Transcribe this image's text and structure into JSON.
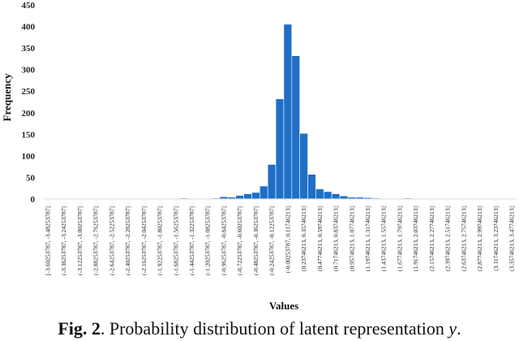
{
  "caption": {
    "label": "Fig. 2",
    "text": ". Probability distribution of latent representation ",
    "variable": "y",
    "end": "."
  },
  "chart_data": {
    "type": "bar",
    "xlabel": "Values",
    "ylabel": "Frequency",
    "ylim": [
      0,
      450
    ],
    "yticks": [
      0,
      50,
      100,
      150,
      200,
      250,
      300,
      350,
      400,
      450
    ],
    "grid": false,
    "bar_color": "#1f6fc6",
    "bins": [
      {
        "value": 0,
        "label": "[-3.60253787, -3.48253787]"
      },
      {
        "value": 0
      },
      {
        "value": 0,
        "label": "(-3.36253787, -3.24253787]"
      },
      {
        "value": 0
      },
      {
        "value": 0,
        "label": "(-3.12253787, -3.00253787]"
      },
      {
        "value": 0
      },
      {
        "value": 0,
        "label": "(-2.88253787, -2.76253787]"
      },
      {
        "value": 0
      },
      {
        "value": 0,
        "label": "(-2.64253787, -2.52253787]"
      },
      {
        "value": 0
      },
      {
        "value": 0,
        "label": "(-2.40253787, -2.28253787]"
      },
      {
        "value": 0
      },
      {
        "value": 0,
        "label": "(-2.16253787, -2.04253787]"
      },
      {
        "value": 1
      },
      {
        "value": 1,
        "label": "(-1.92253787, -1.80253787]"
      },
      {
        "value": 0
      },
      {
        "value": 0,
        "label": "(-1.68253787, -1.56253787]"
      },
      {
        "value": 2
      },
      {
        "value": 1,
        "label": "(-1.44253787, -1.32253787]"
      },
      {
        "value": 0
      },
      {
        "value": 1,
        "label": "(-1.20253787, -1.08253787]"
      },
      {
        "value": 2
      },
      {
        "value": 5,
        "label": "(-0.96253787, -0.84253787]"
      },
      {
        "value": 4
      },
      {
        "value": 8,
        "label": "(-0.72253787, -0.60253787]"
      },
      {
        "value": 12
      },
      {
        "value": 15,
        "label": "(-0.48253787, -0.36253787]"
      },
      {
        "value": 30
      },
      {
        "value": 80,
        "label": "(-0.24253787, -0.12253787]"
      },
      {
        "value": 232
      },
      {
        "value": 405,
        "label": "(-0.00253787, 0.11746213]"
      },
      {
        "value": 332
      },
      {
        "value": 152,
        "label": "(0.23746213, 0.35746213]"
      },
      {
        "value": 57
      },
      {
        "value": 23,
        "label": "(0.47746213, 0.59746213]"
      },
      {
        "value": 17
      },
      {
        "value": 12,
        "label": "(0.71746213, 0.83746213]"
      },
      {
        "value": 7
      },
      {
        "value": 4,
        "label": "(0.95746213, 1.07746213]"
      },
      {
        "value": 4
      },
      {
        "value": 3,
        "label": "(1.19746213, 1.31746213]"
      },
      {
        "value": 2
      },
      {
        "value": 0,
        "label": "(1.43746213, 1.55746213]"
      },
      {
        "value": 0
      },
      {
        "value": 0,
        "label": "(1.67746213, 1.79746213]"
      },
      {
        "value": 2
      },
      {
        "value": 0,
        "label": "(1.91746213, 2.03746213]"
      },
      {
        "value": 0
      },
      {
        "value": 0,
        "label": "(2.15746213, 2.27746213]"
      },
      {
        "value": 0
      },
      {
        "value": 0,
        "label": "(2.39746213, 2.51746213]"
      },
      {
        "value": 0
      },
      {
        "value": 0,
        "label": "(2.63746213, 2.75746213]"
      },
      {
        "value": 0
      },
      {
        "value": 0,
        "label": "(2.87746213, 2.99746213]"
      },
      {
        "value": 0
      },
      {
        "value": 0,
        "label": "(3.11746213, 3.23746213]"
      },
      {
        "value": 0
      },
      {
        "value": 0,
        "label": "(3.35746213, 3.47746213]"
      }
    ]
  }
}
